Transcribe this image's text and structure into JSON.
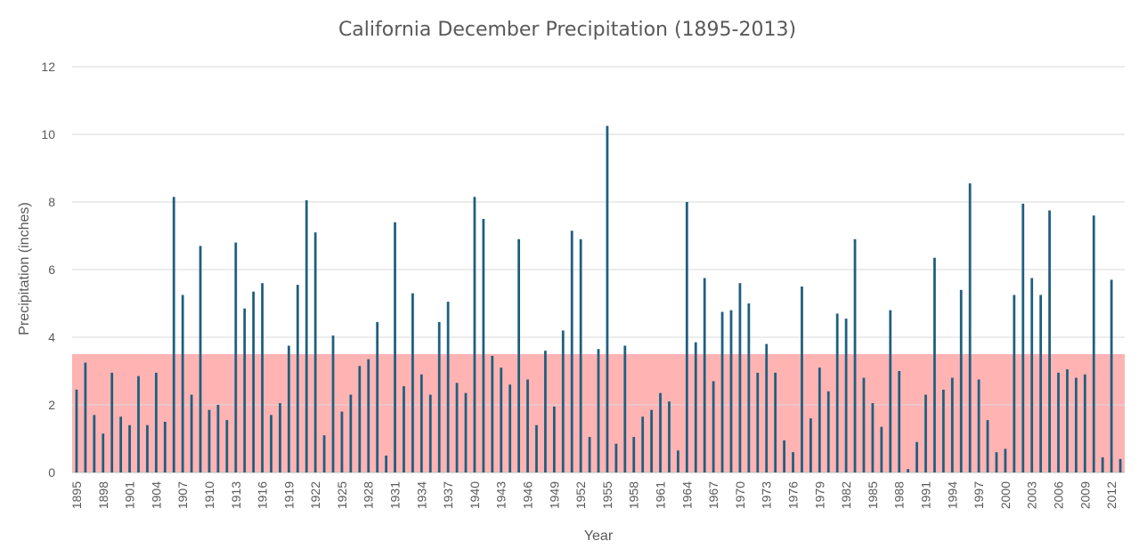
{
  "chart_data": {
    "type": "bar",
    "title": "California December Precipitation (1895-2013)",
    "xlabel": "Year",
    "ylabel": "Precipitation (inches)",
    "ylim": [
      0,
      12
    ],
    "yticks": [
      "0",
      "2",
      "4",
      "6",
      "8",
      "10",
      "12"
    ],
    "grid": true,
    "bar_color": "#1f5f7f",
    "highlight_band": {
      "from": 0,
      "to": 3.5,
      "color": "#ff8a8a"
    },
    "xtick_labels": [
      "1895",
      "1898",
      "1901",
      "1904",
      "1907",
      "1910",
      "1913",
      "1916",
      "1919",
      "1922",
      "1925",
      "1928",
      "1931",
      "1934",
      "1937",
      "1940",
      "1943",
      "1946",
      "1949",
      "1952",
      "1955",
      "1958",
      "1961",
      "1964",
      "1967",
      "1970",
      "1973",
      "1976",
      "1979",
      "1982",
      "1985",
      "1988",
      "1991",
      "1994",
      "1997",
      "2000",
      "2003",
      "2006",
      "2009",
      "2012"
    ],
    "years": [
      1895,
      1896,
      1897,
      1898,
      1899,
      1900,
      1901,
      1902,
      1903,
      1904,
      1905,
      1906,
      1907,
      1908,
      1909,
      1910,
      1911,
      1912,
      1913,
      1914,
      1915,
      1916,
      1917,
      1918,
      1919,
      1920,
      1921,
      1922,
      1923,
      1924,
      1925,
      1926,
      1927,
      1928,
      1929,
      1930,
      1931,
      1932,
      1933,
      1934,
      1935,
      1936,
      1937,
      1938,
      1939,
      1940,
      1941,
      1942,
      1943,
      1944,
      1945,
      1946,
      1947,
      1948,
      1949,
      1950,
      1951,
      1952,
      1953,
      1954,
      1955,
      1956,
      1957,
      1958,
      1959,
      1960,
      1961,
      1962,
      1963,
      1964,
      1965,
      1966,
      1967,
      1968,
      1969,
      1970,
      1971,
      1972,
      1973,
      1974,
      1975,
      1976,
      1977,
      1978,
      1979,
      1980,
      1981,
      1982,
      1983,
      1984,
      1985,
      1986,
      1987,
      1988,
      1989,
      1990,
      1991,
      1992,
      1993,
      1994,
      1995,
      1996,
      1997,
      1998,
      1999,
      2000,
      2001,
      2002,
      2003,
      2004,
      2005,
      2006,
      2007,
      2008,
      2009,
      2010,
      2011,
      2012,
      2013
    ],
    "values": [
      2.45,
      3.25,
      1.7,
      1.15,
      2.95,
      1.65,
      1.4,
      2.85,
      1.4,
      2.95,
      1.5,
      8.15,
      5.25,
      2.3,
      6.7,
      1.85,
      2.0,
      1.55,
      6.8,
      4.85,
      5.35,
      5.6,
      1.7,
      2.05,
      3.75,
      5.55,
      8.05,
      7.1,
      1.1,
      4.05,
      1.8,
      2.3,
      3.15,
      3.35,
      4.45,
      0.5,
      7.4,
      2.55,
      5.3,
      2.9,
      2.3,
      4.45,
      5.05,
      2.65,
      2.35,
      8.15,
      7.5,
      3.45,
      3.1,
      2.6,
      6.9,
      2.75,
      1.4,
      3.6,
      1.95,
      4.2,
      7.15,
      6.9,
      1.05,
      3.65,
      10.25,
      0.85,
      3.75,
      1.05,
      1.65,
      1.85,
      2.35,
      2.1,
      0.65,
      8.0,
      3.85,
      5.75,
      2.7,
      4.75,
      4.8,
      5.6,
      5.0,
      2.95,
      3.8,
      2.95,
      0.95,
      0.6,
      5.5,
      1.6,
      3.1,
      2.4,
      4.7,
      4.55,
      6.9,
      2.8,
      2.05,
      1.35,
      4.8,
      3.0,
      0.1,
      0.9,
      2.3,
      6.35,
      2.45,
      2.8,
      5.4,
      8.55,
      2.75,
      1.55,
      0.6,
      0.7,
      5.25,
      7.95,
      5.75,
      5.25,
      7.75,
      2.95,
      3.05,
      2.8,
      2.9,
      7.6,
      0.45,
      5.7,
      0.4
    ]
  }
}
